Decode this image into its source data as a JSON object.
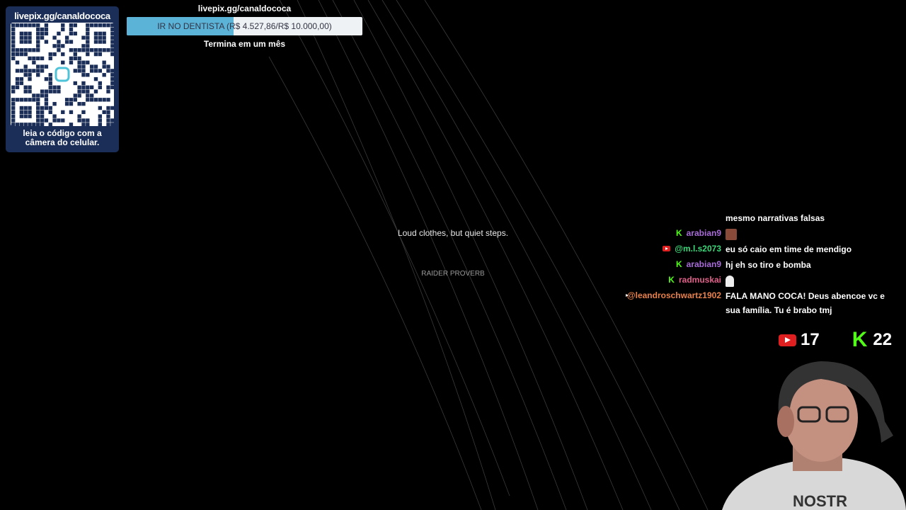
{
  "qr_panel": {
    "url": "livepix.gg/canaldococa",
    "caption_line1": "leia o código com a",
    "caption_line2": "câmera do celular."
  },
  "goal": {
    "url": "livepix.gg/canaldococa",
    "label": "IR NO DENTISTA (R$ 4.527,86/R$ 10.000,00)",
    "current": 4527.86,
    "target": 10000,
    "progress_percent": 45.3,
    "ends": "Termina em um mês",
    "fill_color": "#5bb4d8"
  },
  "quote": {
    "text": "Loud clothes, but quiet steps.",
    "source": "RAIDER PROVERB"
  },
  "chat": [
    {
      "platform": "",
      "user": "",
      "user_color": "",
      "message": "mesmo narrativas falsas"
    },
    {
      "platform": "kick",
      "user": "arabian9",
      "user_color": "#a86bd8",
      "message": "",
      "emote": "face-emote"
    },
    {
      "platform": "youtube",
      "user": "@m.l.s2073",
      "user_color": "#3bd87a",
      "message": "eu só caio em time de mendigo"
    },
    {
      "platform": "kick",
      "user": "arabian9",
      "user_color": "#a86bd8",
      "message": "hj eh so tiro e bomba"
    },
    {
      "platform": "kick",
      "user": "radmuskai",
      "user_color": "#e0608a",
      "message": "",
      "emote": "ghost-emote"
    },
    {
      "platform": "youtube",
      "user": "@leandroschwartz1902",
      "user_color": "#e8804a",
      "message": "FALA MANO COCA! Deus abencoe vc e sua família. Tu é brabo tmj"
    }
  ],
  "viewers": {
    "youtube": "17",
    "kick": "22"
  },
  "colors": {
    "youtube": "#e02020",
    "kick": "#53fc18",
    "qr_panel": "#1b2e57"
  }
}
